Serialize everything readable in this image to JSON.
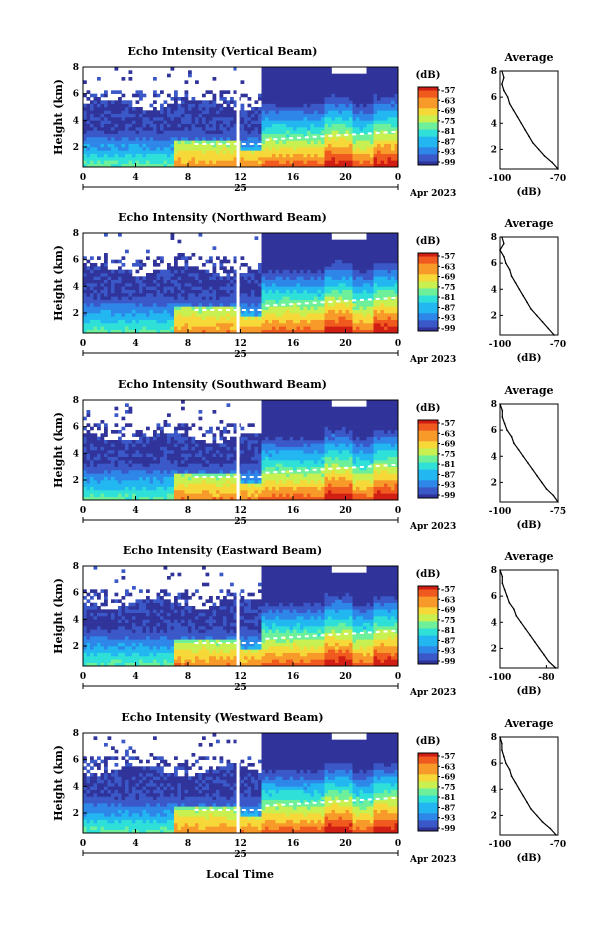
{
  "figure": {
    "xlabel": "Local Time",
    "date_label": "Apr 2023",
    "day_label": "25",
    "colorbar_unit": "(dB)",
    "colorbar_ticks": [
      "-57",
      "-63",
      "-69",
      "-75",
      "-81",
      "-87",
      "-93",
      "-99"
    ],
    "colormap": [
      "#30349a",
      "#3a58c8",
      "#2e86e8",
      "#22b7f0",
      "#2ee0d8",
      "#6ef09a",
      "#c8f050",
      "#f6d838",
      "#f79a2a",
      "#f05a1e",
      "#d01e14"
    ]
  },
  "chart_data": [
    {
      "type": "heatmap",
      "title": "Echo Intensity (Vertical Beam)",
      "ylabel": "Height (km)",
      "x_ticks": [
        "0",
        "4",
        "8",
        "12",
        "16",
        "20",
        "0"
      ],
      "y_ticks": [
        "2",
        "4",
        "6",
        "8"
      ],
      "xlim": [
        0,
        24
      ],
      "ylim": [
        0.5,
        8
      ],
      "profile": {
        "title": "Average",
        "xlabel": "(dB)",
        "x_ticks": [
          "-100",
          "-70"
        ],
        "xlim": [
          -100,
          -70
        ],
        "y_ticks": [
          "2",
          "4",
          "6",
          "8"
        ],
        "ylim": [
          0.5,
          8
        ],
        "height_km": [
          0.5,
          1.0,
          1.5,
          2.0,
          2.5,
          3.0,
          3.5,
          4.0,
          4.5,
          5.0,
          5.5,
          6.0,
          6.5,
          7.0,
          7.5,
          8.0
        ],
        "values_db": [
          -70,
          -73,
          -77,
          -80,
          -83,
          -85,
          -87,
          -89,
          -91,
          -93,
          -95,
          -96,
          -98,
          -99,
          -98,
          -99
        ]
      }
    },
    {
      "type": "heatmap",
      "title": "Echo Intensity (Northward Beam)",
      "ylabel": "Height (km)",
      "x_ticks": [
        "0",
        "4",
        "8",
        "12",
        "16",
        "20",
        "0"
      ],
      "y_ticks": [
        "2",
        "4",
        "6",
        "8"
      ],
      "xlim": [
        0,
        24
      ],
      "ylim": [
        0.5,
        8
      ],
      "profile": {
        "title": "Average",
        "xlabel": "(dB)",
        "x_ticks": [
          "-100",
          "-70"
        ],
        "xlim": [
          -100,
          -70
        ],
        "y_ticks": [
          "2",
          "4",
          "6",
          "8"
        ],
        "ylim": [
          0.5,
          8
        ],
        "height_km": [
          0.5,
          1.0,
          1.5,
          2.0,
          2.5,
          3.0,
          3.5,
          4.0,
          4.5,
          5.0,
          5.5,
          6.0,
          6.5,
          7.0,
          7.5,
          8.0
        ],
        "values_db": [
          -72,
          -75,
          -78,
          -81,
          -84,
          -86,
          -88,
          -90,
          -92,
          -94,
          -95,
          -97,
          -98,
          -100,
          -98,
          -99
        ]
      }
    },
    {
      "type": "heatmap",
      "title": "Echo Intensity (Southward Beam)",
      "ylabel": "Height (km)",
      "x_ticks": [
        "0",
        "4",
        "8",
        "12",
        "16",
        "20",
        "0"
      ],
      "y_ticks": [
        "2",
        "4",
        "6",
        "8"
      ],
      "xlim": [
        0,
        24
      ],
      "ylim": [
        0.5,
        8
      ],
      "profile": {
        "title": "Average",
        "xlabel": "(dB)",
        "x_ticks": [
          "-100",
          "-75"
        ],
        "xlim": [
          -100,
          -75
        ],
        "y_ticks": [
          "2",
          "4",
          "6",
          "8"
        ],
        "ylim": [
          0.5,
          8
        ],
        "height_km": [
          0.5,
          1.0,
          1.5,
          2.0,
          2.5,
          3.0,
          3.5,
          4.0,
          4.5,
          5.0,
          5.5,
          6.0,
          6.5,
          7.0,
          7.5,
          8.0
        ],
        "values_db": [
          -75,
          -77,
          -80,
          -82,
          -84,
          -86,
          -88,
          -90,
          -92,
          -94,
          -95,
          -97,
          -98,
          -99,
          -99,
          -100
        ]
      }
    },
    {
      "type": "heatmap",
      "title": "Echo Intensity (Eastward Beam)",
      "ylabel": "Height (km)",
      "x_ticks": [
        "0",
        "4",
        "8",
        "12",
        "16",
        "20",
        "0"
      ],
      "y_ticks": [
        "2",
        "4",
        "6",
        "8"
      ],
      "xlim": [
        0,
        24
      ],
      "ylim": [
        0.5,
        8
      ],
      "profile": {
        "title": "Average",
        "xlabel": "(dB)",
        "x_ticks": [
          "-100",
          "-80"
        ],
        "xlim": [
          -100,
          -75
        ],
        "y_ticks": [
          "2",
          "4",
          "6",
          "8"
        ],
        "ylim": [
          0.5,
          8
        ],
        "height_km": [
          0.5,
          1.0,
          1.5,
          2.0,
          2.5,
          3.0,
          3.5,
          4.0,
          4.5,
          5.0,
          5.5,
          6.0,
          6.5,
          7.0,
          7.5,
          8.0
        ],
        "values_db": [
          -76,
          -79,
          -81,
          -83,
          -85,
          -87,
          -89,
          -91,
          -93,
          -94,
          -96,
          -97,
          -98,
          -99,
          -99,
          -100
        ]
      }
    },
    {
      "type": "heatmap",
      "title": "Echo Intensity (Westward Beam)",
      "ylabel": "Height (km)",
      "x_ticks": [
        "0",
        "4",
        "8",
        "12",
        "16",
        "20",
        "0"
      ],
      "y_ticks": [
        "2",
        "4",
        "6",
        "8"
      ],
      "xlim": [
        0,
        24
      ],
      "ylim": [
        0.5,
        8
      ],
      "profile": {
        "title": "Average",
        "xlabel": "(dB)",
        "x_ticks": [
          "-100",
          "-70"
        ],
        "xlim": [
          -100,
          -70
        ],
        "y_ticks": [
          "2",
          "4",
          "6",
          "8"
        ],
        "ylim": [
          0.5,
          8
        ],
        "height_km": [
          0.5,
          1.0,
          1.5,
          2.0,
          2.5,
          3.0,
          3.5,
          4.0,
          4.5,
          5.0,
          5.5,
          6.0,
          6.5,
          7.0,
          7.5,
          8.0
        ],
        "values_db": [
          -71,
          -74,
          -78,
          -81,
          -84,
          -86,
          -88,
          -90,
          -92,
          -94,
          -95,
          -97,
          -98,
          -99,
          -99,
          -100
        ]
      }
    }
  ]
}
